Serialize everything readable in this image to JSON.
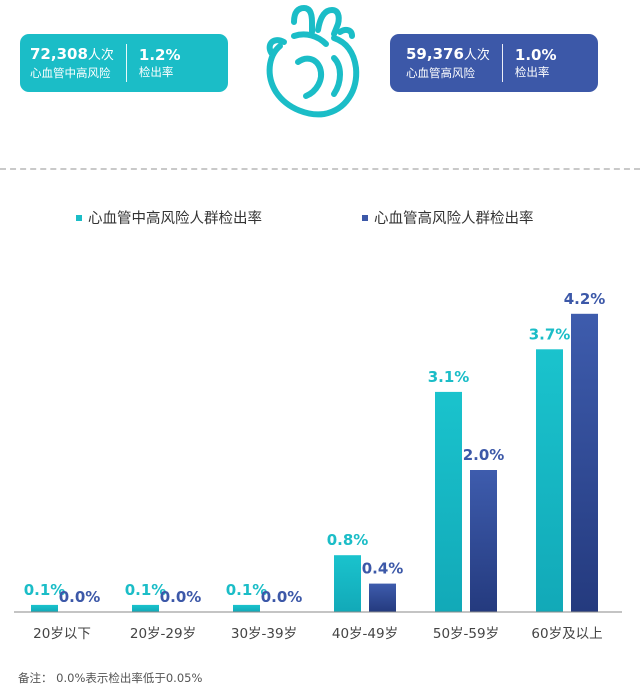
{
  "stats": [
    {
      "value": "72,308",
      "unit": "人次",
      "label": "心血管中高风险",
      "rate": "1.2%",
      "rate_label": "检出率"
    },
    {
      "value": "59,376",
      "unit": "人次",
      "label": "心血管高风险",
      "rate": "1.0%",
      "rate_label": "检出率"
    }
  ],
  "colors": {
    "teal": "#1bbdc7",
    "blue": "#3c58a8"
  },
  "icon": "heart-icon",
  "footnote": "备注： 0.0%表示检出率低于0.05%",
  "chart_data": {
    "type": "bar",
    "categories": [
      "20岁以下",
      "20岁-29岁",
      "30岁-39岁",
      "40岁-49岁",
      "50岁-59岁",
      "60岁及以上"
    ],
    "series": [
      {
        "name": "心血管中高风险人群检出率",
        "values": [
          0.1,
          0.1,
          0.1,
          0.8,
          3.1,
          3.7
        ],
        "labels": [
          "0.1%",
          "0.1%",
          "0.1%",
          "0.8%",
          "3.1%",
          "3.7%"
        ]
      },
      {
        "name": "心血管高风险人群检出率",
        "values": [
          0.0,
          0.0,
          0.0,
          0.4,
          2.0,
          4.2
        ],
        "labels": [
          "0.0%",
          "0.0%",
          "0.0%",
          "0.4%",
          "2.0%",
          "4.2%"
        ]
      }
    ],
    "ylim": [
      0,
      4.5
    ],
    "grid": false,
    "legend": "top"
  }
}
